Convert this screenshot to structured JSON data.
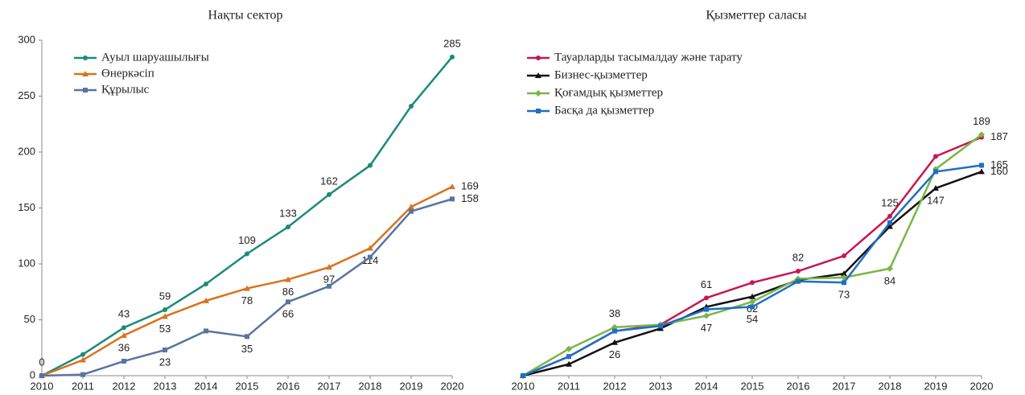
{
  "chart_data": [
    {
      "type": "line",
      "title": "Нақты сектор",
      "categories": [
        "2010",
        "2011",
        "2012",
        "2013",
        "2014",
        "2015",
        "2016",
        "2017",
        "2018",
        "2019",
        "2020"
      ],
      "ylim": [
        0,
        300
      ],
      "yticks": [
        0,
        50,
        100,
        150,
        200,
        250,
        300
      ],
      "series": [
        {
          "name": "Ауыл шаруашылығы",
          "color": "#1b8a7a",
          "marker": "circle",
          "values": [
            0,
            19,
            43,
            59,
            82,
            109,
            133,
            162,
            188,
            241,
            285
          ],
          "value_labels": [
            "0",
            null,
            "43",
            "59",
            null,
            "109",
            "133",
            "162",
            null,
            null,
            "285"
          ]
        },
        {
          "name": "Өнеркәсіп",
          "color": "#d9731f",
          "marker": "triangle",
          "values": [
            0,
            14,
            36,
            53,
            67,
            78,
            86,
            97,
            114,
            151,
            169
          ],
          "value_labels": [
            null,
            null,
            "36",
            "53",
            null,
            "78",
            "86",
            "97",
            "114",
            null,
            "169"
          ]
        },
        {
          "name": "Құрылыс",
          "color": "#5a73a0",
          "marker": "square",
          "values": [
            0,
            1,
            13,
            23,
            40,
            35,
            66,
            80,
            106,
            147,
            158
          ],
          "value_labels": [
            null,
            null,
            null,
            "23",
            null,
            "35",
            "66",
            null,
            null,
            null,
            "158"
          ]
        }
      ]
    },
    {
      "type": "line",
      "title": "Қызметтер саласы",
      "categories": [
        "2010",
        "2011",
        "2012",
        "2013",
        "2014",
        "2015",
        "2016",
        "2017",
        "2018",
        "2019",
        "2020"
      ],
      "series": [
        {
          "name": "Тауарларды тасымалдау және тарату",
          "color": "#c8174f",
          "marker": "circle",
          "values": [
            0,
            15,
            35,
            40,
            61,
            73,
            82,
            94,
            125,
            172,
            187
          ],
          "value_labels": [
            null,
            null,
            null,
            null,
            "61",
            null,
            "82",
            null,
            "125",
            null,
            "187"
          ]
        },
        {
          "name": "Бизнес-қызметтер",
          "color": "#111111",
          "marker": "triangle",
          "values": [
            0,
            9,
            26,
            37,
            54,
            62,
            75,
            80,
            117,
            147,
            160
          ],
          "value_labels": [
            null,
            null,
            "26",
            null,
            null,
            "62",
            null,
            null,
            null,
            "147",
            "160"
          ]
        },
        {
          "name": "Қоғамдық қызметтер",
          "color": "#7ab648",
          "marker": "diamond",
          "values": [
            0,
            21,
            38,
            40,
            47,
            58,
            76,
            77,
            84,
            162,
            189
          ],
          "value_labels": [
            null,
            null,
            "38",
            null,
            "47",
            null,
            null,
            null,
            "84",
            null,
            "189"
          ]
        },
        {
          "name": "Басқа да қызметтер",
          "color": "#1f6fc4",
          "marker": "square",
          "values": [
            0,
            15,
            35,
            39,
            52,
            54,
            74,
            73,
            120,
            160,
            165
          ],
          "value_labels": [
            null,
            null,
            null,
            null,
            null,
            "54",
            null,
            "73",
            null,
            null,
            "165"
          ]
        }
      ]
    }
  ]
}
